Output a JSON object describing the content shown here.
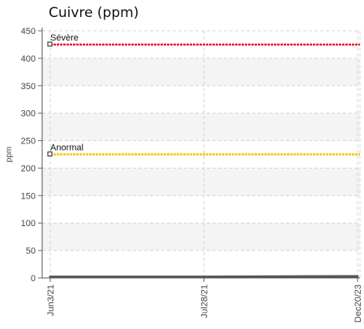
{
  "title": "Cuivre (ppm)",
  "chart_data": {
    "type": "line",
    "title": "Cuivre (ppm)",
    "xlabel": "",
    "ylabel": "ppm",
    "ylim": [
      0,
      450
    ],
    "yticks": [
      0,
      50,
      100,
      150,
      200,
      250,
      300,
      350,
      400,
      450
    ],
    "categories": [
      "Jun3/21",
      "Jul28/21",
      "Dec20/23"
    ],
    "grid": true,
    "thresholds": [
      {
        "label": "Sévère",
        "value": 425,
        "color": "#e8192c"
      },
      {
        "label": "Anormal",
        "value": 225,
        "color": "#f2c600"
      }
    ],
    "series": [
      {
        "values": [
          2,
          2,
          3
        ],
        "color": "#555555"
      }
    ]
  }
}
